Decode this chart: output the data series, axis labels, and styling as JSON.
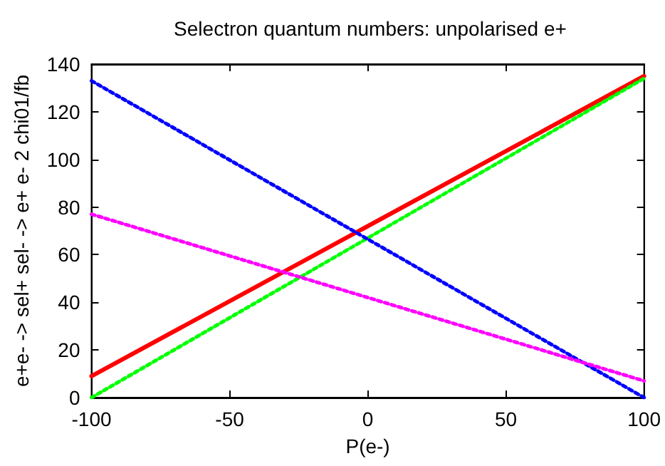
{
  "chart_data": {
    "type": "line",
    "title": "Selectron quantum numbers: unpolarised e+",
    "xlabel": "P(e-)",
    "ylabel": "e+e- -> sel+ sel- -> e+ e- 2 chi01/fb",
    "x": [
      -100,
      100
    ],
    "xlim": [
      -100,
      100
    ],
    "xticks": [
      -100,
      -50,
      0,
      50,
      100
    ],
    "ylim": [
      0,
      140
    ],
    "yticks": [
      0,
      20,
      40,
      60,
      80,
      100,
      120,
      140
    ],
    "grid": false,
    "marker": "none",
    "series": [
      {
        "color": "#ff0000",
        "line_style": "solid",
        "values": [
          9,
          135
        ]
      },
      {
        "color": "#00ff00",
        "line_style": "dotted",
        "values": [
          0,
          134
        ]
      },
      {
        "color": "#0000ff",
        "line_style": "dotted",
        "values": [
          133,
          0
        ]
      },
      {
        "color": "#ff00ff",
        "line_style": "dotted",
        "values": [
          77,
          7
        ]
      }
    ]
  }
}
